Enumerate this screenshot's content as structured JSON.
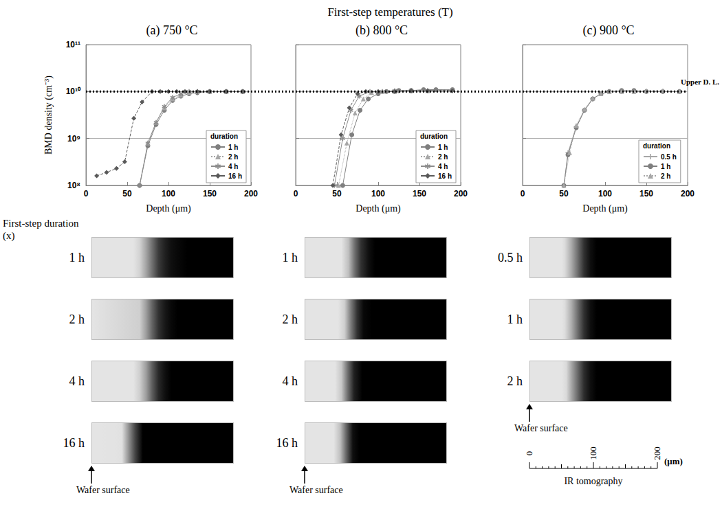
{
  "title": "First-step temperatures (T)",
  "upper_detection_limit": {
    "label": "Upper D. L.",
    "value": 10000000000.0
  },
  "chart_data": [
    {
      "type": "line",
      "title": "(a) 750 °C",
      "xlabel": "Depth (μm)",
      "ylabel": "BMD density (cm⁻³)",
      "log": "y",
      "grid": true,
      "legend": "lower right",
      "legend_title": "duration",
      "xlim": [
        0,
        200
      ],
      "xticks": [
        0,
        50,
        100,
        150,
        200
      ],
      "ylim": [
        100000000.0,
        100000000000.0
      ],
      "yticks": [
        {
          "value": 100000000.0,
          "label": "10⁸"
        },
        {
          "value": 1000000000.0,
          "label": "10⁹"
        },
        {
          "value": 10000000000.0,
          "label": "10¹⁰"
        },
        {
          "value": 100000000000.0,
          "label": "10¹¹"
        }
      ],
      "series": [
        {
          "name": "1 h",
          "color": "#7f7f7f",
          "marker": "circle",
          "line_style": "solid",
          "x": [
            65,
            75,
            85,
            95,
            105,
            115,
            125,
            135,
            150,
            170,
            190
          ],
          "values": [
            100000000.0,
            700000000.0,
            2000000000.0,
            4000000000.0,
            6500000000.0,
            8000000000.0,
            9000000000.0,
            9500000000.0,
            10000000000.0,
            10000000000.0,
            10000000000.0
          ]
        },
        {
          "name": "2 h",
          "color": "#a6a6a6",
          "marker": "triangle",
          "line_style": "dotted",
          "x": [
            75,
            85,
            95,
            105,
            115,
            125,
            135,
            150,
            170,
            190
          ],
          "values": [
            800000000.0,
            2200000000.0,
            4500000000.0,
            7000000000.0,
            8500000000.0,
            9500000000.0,
            10000000000.0,
            10000000000.0,
            10000000000.0,
            10000000000.0
          ]
        },
        {
          "name": "4 h",
          "color": "#8c8c8c",
          "marker": "asterisk",
          "line_style": "solid",
          "x": [
            65,
            75,
            85,
            95,
            105,
            115,
            125,
            135,
            150,
            170,
            190
          ],
          "values": [
            100000000.0,
            800000000.0,
            2200000000.0,
            4800000000.0,
            7500000000.0,
            9000000000.0,
            10000000000.0,
            10000000000.0,
            10000000000.0,
            10000000000.0,
            10000000000.0
          ]
        },
        {
          "name": "16 h",
          "color": "#595959",
          "marker": "diamond",
          "line_style": "dashed",
          "x": [
            13,
            25,
            37,
            47,
            58,
            68,
            80,
            90,
            100,
            110,
            120,
            135,
            150,
            170,
            190
          ],
          "values": [
            160000000.0,
            190000000.0,
            230000000.0,
            320000000.0,
            2700000000.0,
            6000000000.0,
            10000000000.0,
            10000000000.0,
            10000000000.0,
            10000000000.0,
            10000000000.0,
            10000000000.0,
            10000000000.0,
            10000000000.0,
            10000000000.0
          ]
        }
      ]
    },
    {
      "type": "line",
      "title": "(b) 800 °C",
      "xlabel": "Depth (μm)",
      "log": "y",
      "grid": true,
      "legend": "lower right",
      "legend_title": "duration",
      "tick_labels": "x",
      "xlim": [
        0,
        200
      ],
      "xticks": [
        0,
        50,
        100,
        150,
        200
      ],
      "ylim": [
        100000000.0,
        100000000000.0
      ],
      "yticks": [
        {
          "value": 100000000.0,
          "label": "10⁸"
        },
        {
          "value": 1000000000.0,
          "label": "10⁹"
        },
        {
          "value": 10000000000.0,
          "label": "10¹⁰"
        },
        {
          "value": 100000000000.0,
          "label": "10¹¹"
        }
      ],
      "series": [
        {
          "name": "1 h",
          "color": "#7f7f7f",
          "marker": "circle",
          "line_style": "solid",
          "x": [
            57,
            68,
            78,
            88,
            100,
            110,
            125,
            140,
            155,
            170,
            190
          ],
          "values": [
            100000000.0,
            1200000000.0,
            4000000000.0,
            7000000000.0,
            9000000000.0,
            10000000000.0,
            10500000000.0,
            10500000000.0,
            11000000000.0,
            11000000000.0,
            11000000000.0
          ]
        },
        {
          "name": "2 h",
          "color": "#a6a6a6",
          "marker": "triangle",
          "line_style": "dotted",
          "x": [
            52,
            62,
            72,
            82,
            92,
            105,
            120,
            140,
            160,
            190
          ],
          "values": [
            100000000.0,
            800000000.0,
            3500000000.0,
            7000000000.0,
            9500000000.0,
            10000000000.0,
            10000000000.0,
            10500000000.0,
            10500000000.0,
            11000000000.0
          ]
        },
        {
          "name": "4 h",
          "color": "#8c8c8c",
          "marker": "asterisk",
          "line_style": "solid",
          "x": [
            47,
            57,
            67,
            77,
            90,
            105,
            120,
            140,
            160,
            190
          ],
          "values": [
            100000000.0,
            1000000000.0,
            4000000000.0,
            8000000000.0,
            10000000000.0,
            10000000000.0,
            10500000000.0,
            10500000000.0,
            10500000000.0,
            10500000000.0
          ]
        },
        {
          "name": "16 h",
          "color": "#595959",
          "marker": "diamond",
          "line_style": "dashed",
          "x": [
            45,
            55,
            65,
            75,
            85,
            100,
            120,
            140,
            160,
            190
          ],
          "values": [
            100000000.0,
            1200000000.0,
            4500000000.0,
            9000000000.0,
            10000000000.0,
            10000000000.0,
            10000000000.0,
            10500000000.0,
            10500000000.0,
            10500000000.0
          ]
        }
      ]
    },
    {
      "type": "line",
      "title": "(c) 900 °C",
      "xlabel": "Depth (μm)",
      "log": "y",
      "grid": true,
      "legend": "lower right",
      "legend_title": "duration",
      "tick_labels": "x",
      "xlim": [
        0,
        200
      ],
      "xticks": [
        0,
        50,
        100,
        150,
        200
      ],
      "ylim": [
        100000000.0,
        100000000000.0
      ],
      "yticks": [
        {
          "value": 100000000.0,
          "label": "10⁸"
        },
        {
          "value": 1000000000.0,
          "label": "10⁹"
        },
        {
          "value": 10000000000.0,
          "label": "10¹⁰"
        },
        {
          "value": 100000000000.0,
          "label": "10¹¹"
        }
      ],
      "series": [
        {
          "name": "0.5 h",
          "color": "#a6a6a6",
          "marker": "plus",
          "line_style": "solid",
          "x": [
            50,
            55,
            65,
            75,
            85,
            95,
            105,
            120,
            135,
            150,
            170,
            190
          ],
          "values": [
            100000000.0,
            500000000.0,
            1800000000.0,
            4000000000.0,
            7000000000.0,
            9000000000.0,
            10000000000.0,
            10000000000.0,
            10000000000.0,
            10000000000.0,
            10000000000.0,
            10000000000.0
          ]
        },
        {
          "name": "1 h",
          "color": "#7f7f7f",
          "marker": "circle",
          "line_style": "solid",
          "x": [
            50,
            55,
            65,
            75,
            85,
            95,
            105,
            120,
            135,
            150,
            170,
            190
          ],
          "values": [
            100000000.0,
            450000000.0,
            1700000000.0,
            4000000000.0,
            7000000000.0,
            9000000000.0,
            10000000000.0,
            10500000000.0,
            10500000000.0,
            10000000000.0,
            10000000000.0,
            10000000000.0
          ]
        },
        {
          "name": "2 h",
          "color": "#a6a6a6",
          "marker": "triangle",
          "line_style": "dotted",
          "x": [
            50,
            57,
            65,
            75,
            85,
            95,
            105,
            120,
            135,
            150,
            170,
            190
          ],
          "values": [
            100000000.0,
            500000000.0,
            1900000000.0,
            4200000000.0,
            7200000000.0,
            9000000000.0,
            10000000000.0,
            10000000000.0,
            10000000000.0,
            10500000000.0,
            10500000000.0,
            10000000000.0
          ]
        }
      ]
    }
  ],
  "tomography": {
    "title": "First-step duration (x)",
    "columns": [
      {
        "rows": [
          "1 h",
          "2 h",
          "4 h",
          "16 h"
        ],
        "surface_label": "Wafer surface"
      },
      {
        "rows": [
          "1 h",
          "2 h",
          "4 h",
          "16 h"
        ],
        "surface_label": "Wafer surface"
      },
      {
        "rows": [
          "0.5 h",
          "1 h",
          "2 h"
        ],
        "surface_label": "Wafer surface"
      }
    ],
    "scale": {
      "ticks": [
        0,
        100,
        200
      ],
      "unit": "(μm)",
      "title": "IR tomography"
    }
  }
}
